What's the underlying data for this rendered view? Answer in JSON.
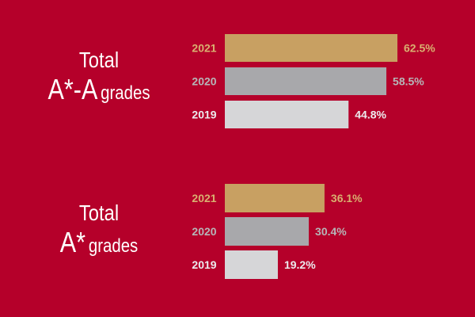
{
  "colors": {
    "background": "#b5002a",
    "bar_2021": "#c8a062",
    "bar_2020": "#a8a8ab",
    "bar_2019": "#d6d6d8",
    "label_2021": "#d9b070",
    "label_2020": "#b6b6b8",
    "label_2019": "#ececee",
    "title": "#ffffff"
  },
  "panels": [
    {
      "title_line1": "Total",
      "title_big": "A*-A",
      "title_small": "grades"
    },
    {
      "title_line1": "Total",
      "title_big": "A*",
      "title_small": "grades"
    }
  ],
  "chart_data": [
    {
      "type": "bar",
      "orientation": "horizontal",
      "categories": [
        "2021",
        "2020",
        "2019"
      ],
      "values": [
        62.5,
        58.5,
        44.8
      ],
      "value_labels": [
        "62.5%",
        "58.5%",
        "44.8%"
      ],
      "unit": "%",
      "title": "Total A*-A grades",
      "xlim": [
        0,
        70
      ]
    },
    {
      "type": "bar",
      "orientation": "horizontal",
      "categories": [
        "2021",
        "2020",
        "2019"
      ],
      "values": [
        36.1,
        30.4,
        19.2
      ],
      "value_labels": [
        "36.1%",
        "30.4%",
        "19.2%"
      ],
      "unit": "%",
      "title": "Total A* grades",
      "xlim": [
        0,
        70
      ]
    }
  ]
}
